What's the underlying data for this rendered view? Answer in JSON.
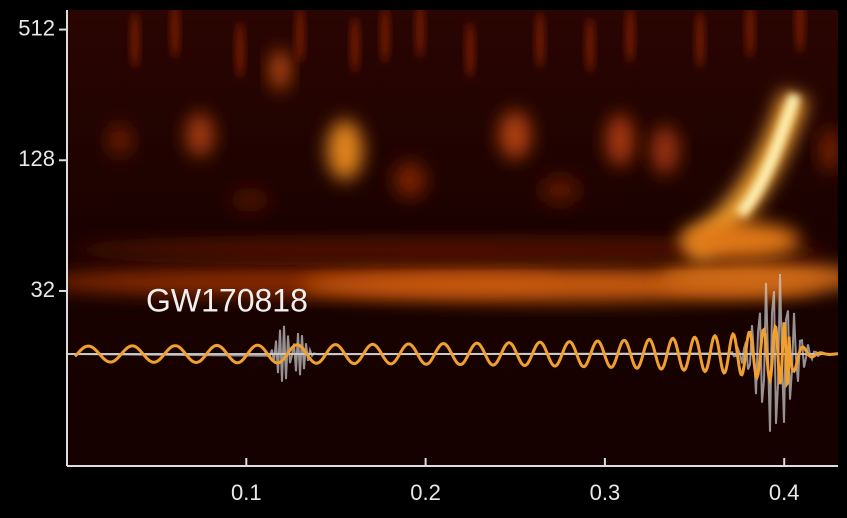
{
  "chart_data": {
    "type": "spectrogram",
    "annotation": "GW170818",
    "xlim": [
      0,
      0.43
    ],
    "xticks": [
      0.1,
      0.2,
      0.3,
      0.4
    ],
    "ylim": [
      5,
      630
    ],
    "yticks": [
      32,
      128,
      512
    ],
    "y_scale": "log"
  }
}
